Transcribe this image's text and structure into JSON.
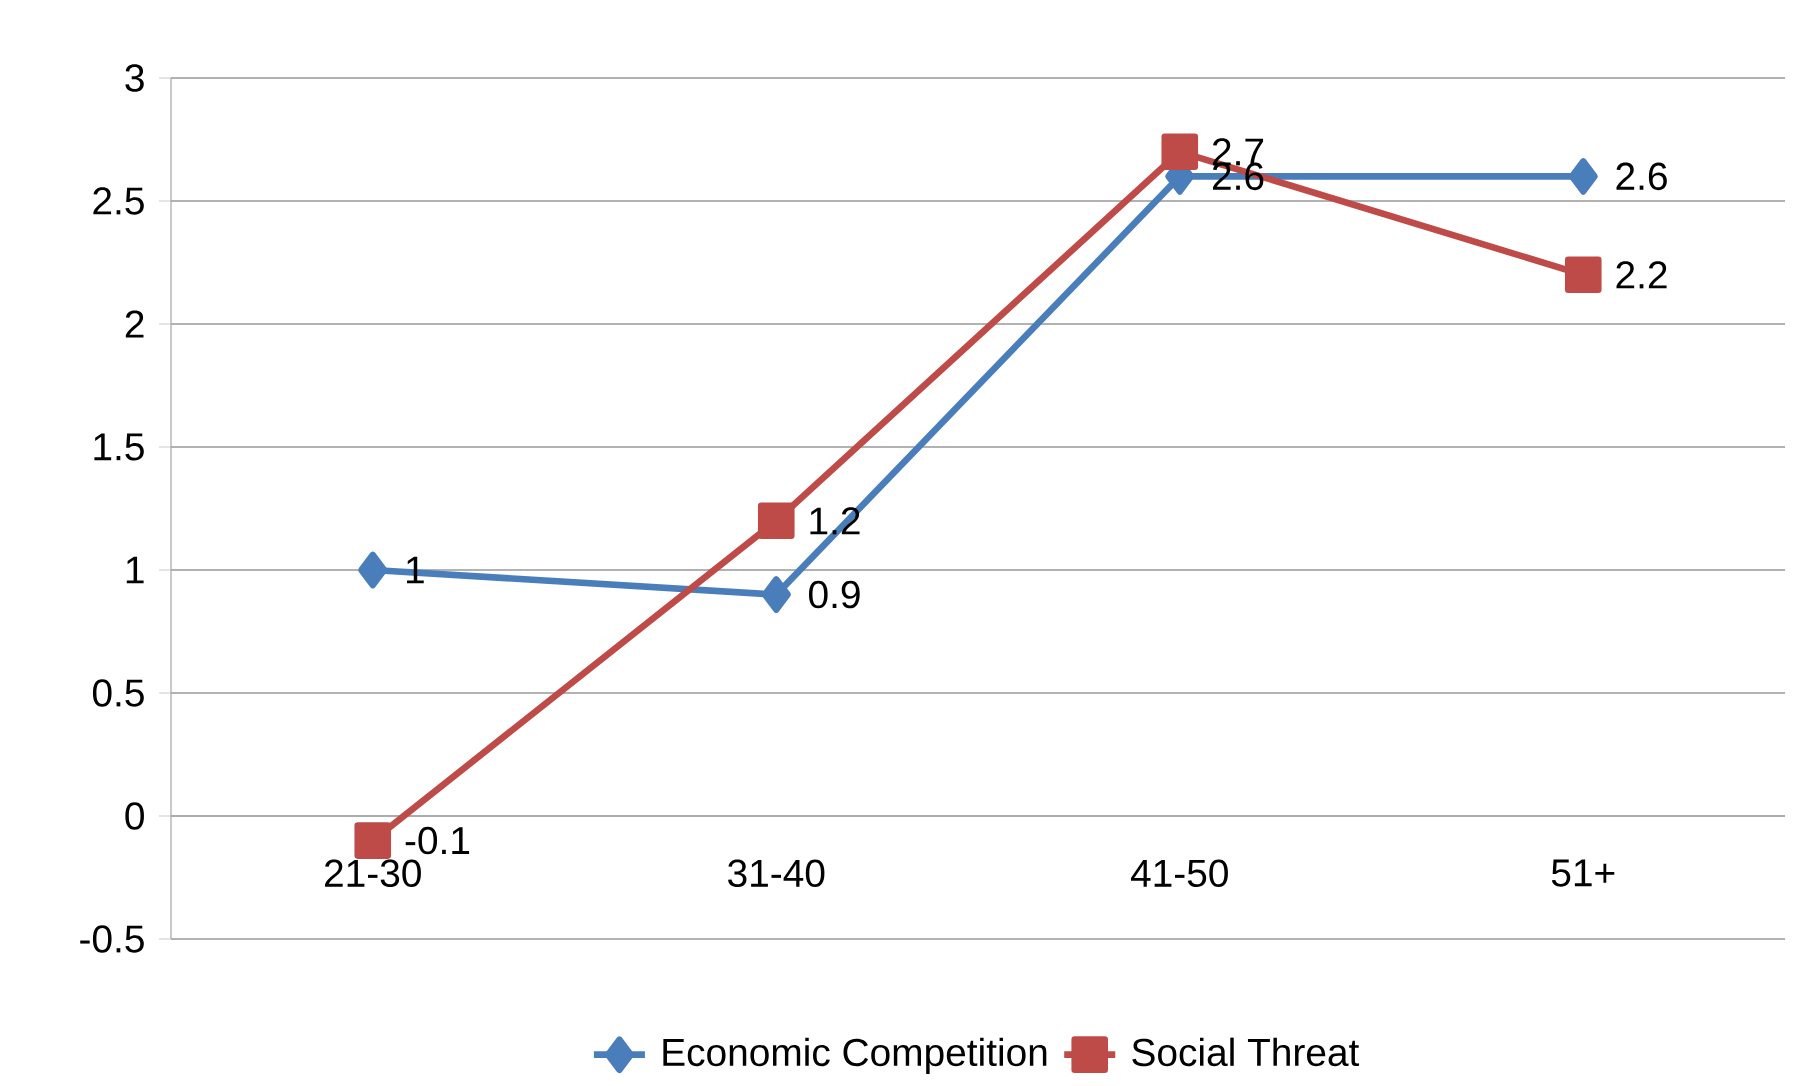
{
  "chart_data": {
    "type": "line",
    "categories": [
      "21-30",
      "31-40",
      "41-50",
      "51+"
    ],
    "series": [
      {
        "name": "Economic Competition",
        "color": "#4a7ebb",
        "marker": "diamond",
        "values": [
          1,
          0.9,
          2.6,
          2.6
        ]
      },
      {
        "name": "Social Threat",
        "color": "#be4b48",
        "marker": "square",
        "values": [
          -0.1,
          1.2,
          2.7,
          2.2
        ]
      }
    ],
    "ylim": [
      -0.5,
      3
    ],
    "yticks": [
      -0.5,
      0,
      0.5,
      1,
      1.5,
      2,
      2.5,
      3
    ],
    "grid": "y",
    "legend": "bottom",
    "data_labels": true
  }
}
